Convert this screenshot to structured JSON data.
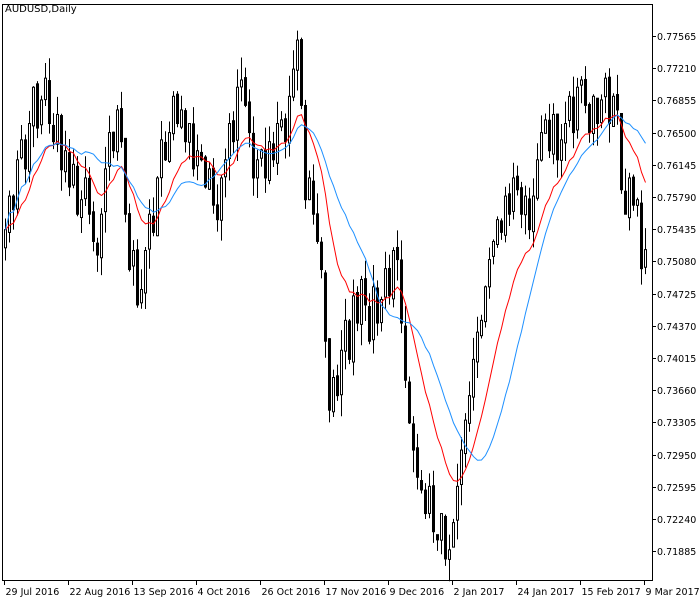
{
  "chart_data": {
    "type": "candlestick",
    "title": "AUDUSD,Daily",
    "symbol": "AUDUSD",
    "timeframe": "Daily",
    "y_ticks": [
      "0.77565",
      "0.77210",
      "0.76855",
      "0.76500",
      "0.76145",
      "0.75790",
      "0.75435",
      "0.75080",
      "0.74725",
      "0.74370",
      "0.74015",
      "0.73660",
      "0.73305",
      "0.72950",
      "0.72595",
      "0.72240",
      "0.71885"
    ],
    "x_ticks": [
      "29 Jul 2016",
      "22 Aug 2016",
      "13 Sep 2016",
      "4 Oct 2016",
      "26 Oct 2016",
      "17 Nov 2016",
      "9 Dec 2016",
      "2 Jan 2017",
      "24 Jan 2017",
      "15 Feb 2017",
      "9 Mar 2017"
    ],
    "x_tick_every_bars": 16,
    "ylim": [
      0.716,
      0.782
    ],
    "grid": false,
    "colors": {
      "bull_body": "#ffffff",
      "bear_body": "#000000",
      "candle_outline": "#000000",
      "ma_fast": "#ff0000",
      "ma_slow": "#1e90ff"
    },
    "moving_averages": [
      {
        "color": "#ff0000"
      },
      {
        "color": "#1e90ff"
      }
    ],
    "closes": [
      0.7543,
      0.758,
      0.7565,
      0.762,
      0.7642,
      0.761,
      0.766,
      0.77,
      0.7655,
      0.7686,
      0.771,
      0.766,
      0.764,
      0.767,
      0.7609,
      0.763,
      0.759,
      0.7615,
      0.756,
      0.7576,
      0.76,
      0.756,
      0.753,
      0.7515,
      0.756,
      0.761,
      0.765,
      0.763,
      0.7675,
      0.764,
      0.756,
      0.7499,
      0.752,
      0.746,
      0.7477,
      0.752,
      0.756,
      0.754,
      0.76,
      0.7642,
      0.762,
      0.765,
      0.769,
      0.766,
      0.7675,
      0.764,
      0.766,
      0.761,
      0.763,
      0.762,
      0.759,
      0.761,
      0.757,
      0.7554,
      0.76,
      0.762,
      0.766,
      0.764,
      0.77,
      0.7708,
      0.768,
      0.765,
      0.76,
      0.762,
      0.7631,
      0.76,
      0.764,
      0.762,
      0.766,
      0.7664,
      0.764,
      0.769,
      0.772,
      0.7752,
      0.768,
      0.7576,
      0.76,
      0.756,
      0.753,
      0.7499,
      0.742,
      0.7344,
      0.738,
      0.736,
      0.741,
      0.7443,
      0.74,
      0.747,
      0.744,
      0.7488,
      0.746,
      0.742,
      0.748,
      0.744,
      0.7466,
      0.75,
      0.747,
      0.752,
      0.751,
      0.744,
      0.7377,
      0.733,
      0.73,
      0.727,
      0.7256,
      0.723,
      0.726,
      0.721,
      0.7201,
      0.723,
      0.718,
      0.719,
      0.722,
      0.726,
      0.73,
      0.7333,
      0.736,
      0.74,
      0.743,
      0.7443,
      0.748,
      0.751,
      0.753,
      0.7554,
      0.754,
      0.758,
      0.756,
      0.76,
      0.7587,
      0.756,
      0.758,
      0.7543,
      0.758,
      0.762,
      0.765,
      0.7664,
      0.763,
      0.767,
      0.762,
      0.7642,
      0.766,
      0.769,
      0.765,
      0.77,
      0.7708,
      0.768,
      0.765,
      0.769,
      0.766,
      0.7686,
      0.771,
      0.766,
      0.769,
      0.7675,
      0.7587,
      0.756,
      0.76,
      0.757,
      0.7576,
      0.75,
      0.7521
    ]
  }
}
